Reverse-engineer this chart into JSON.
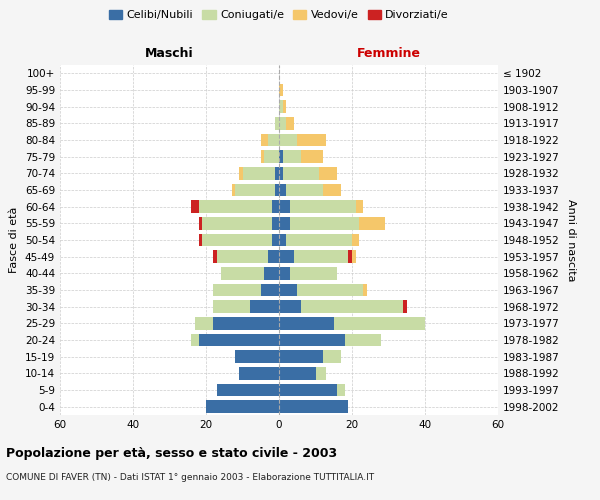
{
  "age_groups": [
    "0-4",
    "5-9",
    "10-14",
    "15-19",
    "20-24",
    "25-29",
    "30-34",
    "35-39",
    "40-44",
    "45-49",
    "50-54",
    "55-59",
    "60-64",
    "65-69",
    "70-74",
    "75-79",
    "80-84",
    "85-89",
    "90-94",
    "95-99",
    "100+"
  ],
  "birth_years": [
    "1998-2002",
    "1993-1997",
    "1988-1992",
    "1983-1987",
    "1978-1982",
    "1973-1977",
    "1968-1972",
    "1963-1967",
    "1958-1962",
    "1953-1957",
    "1948-1952",
    "1943-1947",
    "1938-1942",
    "1933-1937",
    "1928-1932",
    "1923-1927",
    "1918-1922",
    "1913-1917",
    "1908-1912",
    "1903-1907",
    "≤ 1902"
  ],
  "males": {
    "celibi": [
      20,
      17,
      11,
      12,
      22,
      18,
      8,
      5,
      4,
      3,
      2,
      2,
      2,
      1,
      1,
      0,
      0,
      0,
      0,
      0,
      0
    ],
    "coniugati": [
      0,
      0,
      0,
      0,
      2,
      5,
      10,
      13,
      12,
      14,
      19,
      19,
      20,
      11,
      9,
      4,
      3,
      1,
      0,
      0,
      0
    ],
    "vedovi": [
      0,
      0,
      0,
      0,
      0,
      0,
      0,
      0,
      0,
      0,
      0,
      0,
      0,
      1,
      1,
      1,
      2,
      0,
      0,
      0,
      0
    ],
    "divorziati": [
      0,
      0,
      0,
      0,
      0,
      0,
      0,
      0,
      0,
      1,
      1,
      1,
      2,
      0,
      0,
      0,
      0,
      0,
      0,
      0,
      0
    ]
  },
  "females": {
    "nubili": [
      19,
      16,
      10,
      12,
      18,
      15,
      6,
      5,
      3,
      4,
      2,
      3,
      3,
      2,
      1,
      1,
      0,
      0,
      0,
      0,
      0
    ],
    "coniugate": [
      0,
      2,
      3,
      5,
      10,
      25,
      28,
      18,
      13,
      15,
      18,
      19,
      18,
      10,
      10,
      5,
      5,
      2,
      1,
      0,
      0
    ],
    "vedove": [
      0,
      0,
      0,
      0,
      0,
      0,
      0,
      1,
      0,
      1,
      2,
      7,
      2,
      5,
      5,
      6,
      8,
      2,
      1,
      1,
      0
    ],
    "divorziate": [
      0,
      0,
      0,
      0,
      0,
      0,
      1,
      0,
      0,
      1,
      0,
      0,
      0,
      0,
      0,
      0,
      0,
      0,
      0,
      0,
      0
    ]
  },
  "colors": {
    "celibi": "#3a6ea5",
    "coniugati": "#c8dca5",
    "vedovi": "#f5c76a",
    "divorziati": "#cc2222"
  },
  "xlim": 60,
  "title": "Popolazione per età, sesso e stato civile - 2003",
  "subtitle": "COMUNE DI FAVER (TN) - Dati ISTAT 1° gennaio 2003 - Elaborazione TUTTITALIA.IT",
  "xlabel_left": "Maschi",
  "xlabel_right": "Femmine",
  "ylabel_left": "Fasce di età",
  "ylabel_right": "Anni di nascita",
  "legend_labels": [
    "Celibi/Nubili",
    "Coniugati/e",
    "Vedovi/e",
    "Divorziati/e"
  ],
  "bg_color": "#f5f5f5",
  "bar_bg_color": "#ffffff"
}
